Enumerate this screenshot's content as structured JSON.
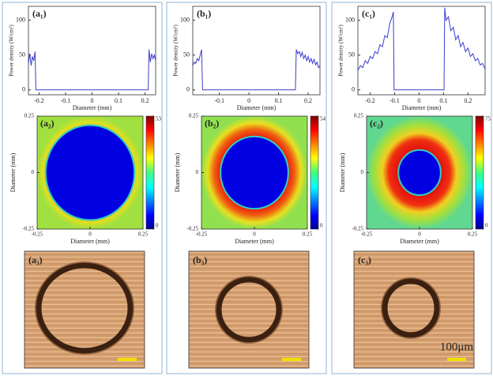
{
  "chart_data": [
    {
      "type": "line",
      "label": "(a₁)",
      "xlabel": "Diameter (mm)",
      "ylabel": "Power density (W/cm²)",
      "color": "#3b3bcf",
      "xlim": [
        -0.24,
        0.24
      ],
      "ylim": [
        -7,
        120
      ],
      "xticks": [
        -0.2,
        -0.1,
        0,
        0.1,
        0.2
      ],
      "yticks": [
        0,
        50,
        100
      ],
      "x": [
        -0.24,
        -0.235,
        -0.23,
        -0.225,
        -0.22,
        -0.215,
        -0.212,
        0.212,
        0.215,
        0.22,
        0.225,
        0.23,
        0.235,
        0.24
      ],
      "values": [
        38,
        52,
        35,
        48,
        42,
        55,
        0,
        0,
        58,
        40,
        52,
        45,
        50,
        42
      ]
    },
    {
      "type": "line",
      "label": "(b₁)",
      "xlabel": "Diameter (mm)",
      "ylabel": "Power density (W/cm²)",
      "color": "#3b3bcf",
      "xlim": [
        -0.19,
        0.24
      ],
      "ylim": [
        -7,
        120
      ],
      "xticks": [
        -0.1,
        0,
        0.1,
        0.2
      ],
      "yticks": [
        0,
        50,
        100
      ],
      "x": [
        -0.19,
        -0.185,
        -0.18,
        -0.175,
        -0.17,
        -0.165,
        -0.16,
        -0.157,
        0.157,
        0.16,
        0.165,
        0.17,
        0.175,
        0.18,
        0.185,
        0.19,
        0.195,
        0.2,
        0.205,
        0.21,
        0.215,
        0.22,
        0.225,
        0.23,
        0.235,
        0.24
      ],
      "values": [
        35,
        40,
        38,
        45,
        42,
        50,
        58,
        0,
        0,
        58,
        52,
        55,
        48,
        54,
        45,
        50,
        42,
        48,
        40,
        45,
        38,
        44,
        36,
        40,
        32,
        35
      ]
    },
    {
      "type": "line",
      "label": "(c₁)",
      "xlabel": "Diameter (mm)",
      "ylabel": "Power density (W/cm²)",
      "color": "#3b3bcf",
      "xlim": [
        -0.25,
        0.27
      ],
      "ylim": [
        -7,
        120
      ],
      "xticks": [
        -0.2,
        -0.1,
        0,
        0.1,
        0.2
      ],
      "yticks": [
        0,
        50,
        100
      ],
      "x": [
        -0.25,
        -0.24,
        -0.23,
        -0.22,
        -0.21,
        -0.2,
        -0.19,
        -0.18,
        -0.17,
        -0.16,
        -0.15,
        -0.14,
        -0.13,
        -0.12,
        -0.11,
        -0.105,
        -0.102,
        0.102,
        0.105,
        0.11,
        0.12,
        0.13,
        0.14,
        0.15,
        0.16,
        0.17,
        0.18,
        0.19,
        0.2,
        0.21,
        0.22,
        0.23,
        0.24,
        0.25,
        0.26,
        0.27
      ],
      "values": [
        28,
        35,
        32,
        42,
        38,
        48,
        45,
        55,
        52,
        65,
        62,
        78,
        75,
        95,
        105,
        112,
        0,
        0,
        118,
        100,
        105,
        85,
        90,
        72,
        78,
        62,
        68,
        55,
        60,
        48,
        52,
        42,
        45,
        36,
        38,
        30
      ]
    },
    {
      "type": "heatmap",
      "label": "(a₂)",
      "xlabel": "Diameter (mm)",
      "ylabel": "Diameter (mm)",
      "xlim": [
        -0.25,
        0.25
      ],
      "ylim": [
        -0.25,
        0.25
      ],
      "xticks": [
        -0.25,
        0,
        0.25
      ],
      "yticks": [
        -0.25,
        0,
        0.25
      ],
      "clim": [
        0,
        53
      ],
      "cticks": [
        0,
        53
      ],
      "hole_radius": 0.21
    },
    {
      "type": "heatmap",
      "label": "(b₂)",
      "xlabel": "Diameter (mm)",
      "ylabel": "Diameter (mm)",
      "xlim": [
        -0.25,
        0.25
      ],
      "ylim": [
        -0.25,
        0.25
      ],
      "xticks": [
        -0.25,
        0,
        0.25
      ],
      "yticks": [
        -0.25,
        0,
        0.25
      ],
      "clim": [
        0,
        54
      ],
      "cticks": [
        0,
        54
      ],
      "hole_radius": 0.16
    },
    {
      "type": "heatmap",
      "label": "(c₂)",
      "xlabel": "Diameter (mm)",
      "ylabel": "Diameter (mm)",
      "xlim": [
        -0.25,
        0.25
      ],
      "ylim": [
        -0.25,
        0.25
      ],
      "xticks": [
        -0.25,
        0,
        0.25
      ],
      "yticks": [
        -0.25,
        0,
        0.25
      ],
      "clim": [
        0,
        75
      ],
      "cticks": [
        0,
        75
      ],
      "hole_radius": 0.1
    }
  ],
  "micrographs": [
    {
      "label": "(a₃)"
    },
    {
      "label": "(b₃)"
    },
    {
      "label": "(c₃)"
    }
  ],
  "scale_bar_label": "100μm"
}
